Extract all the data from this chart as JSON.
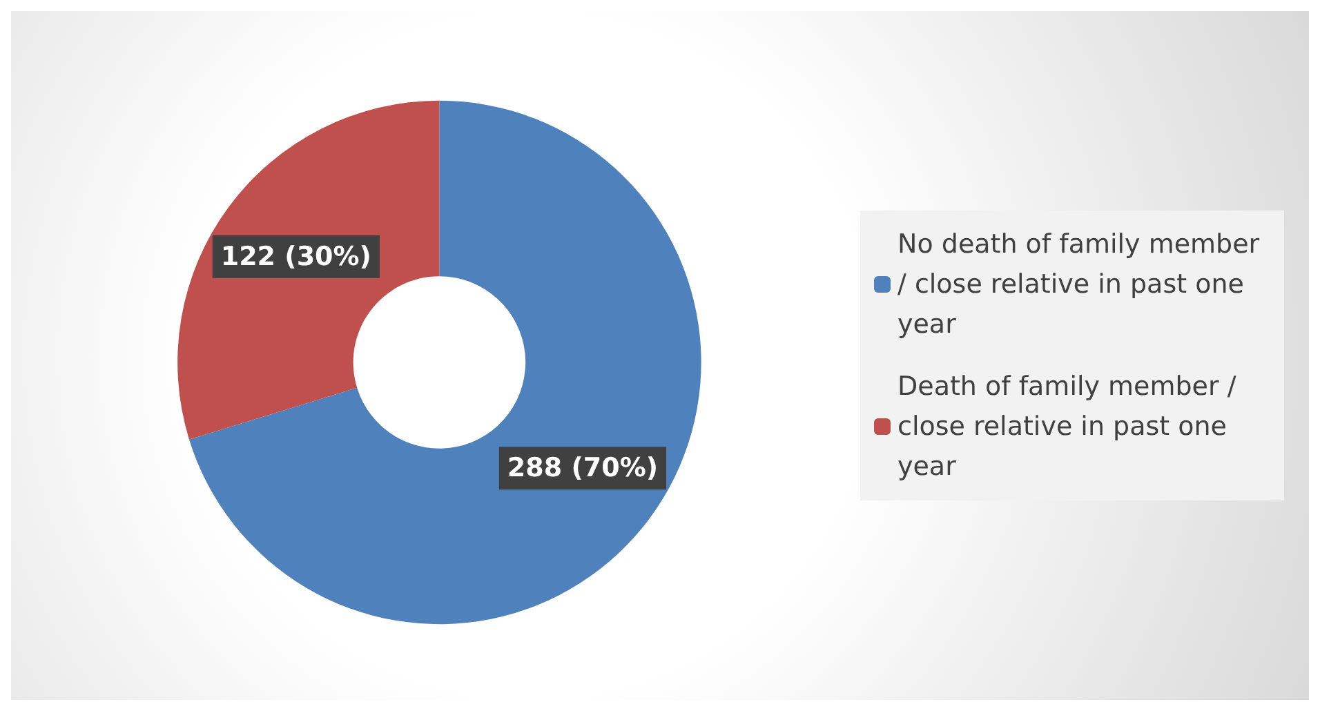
{
  "chart_data": {
    "type": "donut",
    "categories": [
      "No death of family member / close relative in past one year",
      "Death of family member / close relative in past one year"
    ],
    "values": [
      288,
      122
    ],
    "colors": [
      "#4f81bd",
      "#c0504d"
    ],
    "value_labels": [
      "288 (70%)",
      "122 (30%)"
    ],
    "legend": "right"
  }
}
